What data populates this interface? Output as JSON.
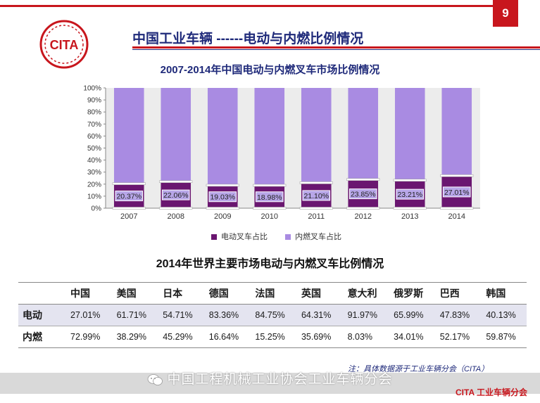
{
  "page_number": "9",
  "logo_text": "CITA",
  "slide_title": "中国工业车辆 ------电动与内燃比例情况",
  "chart_data": {
    "type": "bar",
    "stacked": true,
    "title": "2007-2014年中国电动与内燃叉车市场比例情况",
    "categories": [
      "2007",
      "2008",
      "2009",
      "2010",
      "2011",
      "2012",
      "2013",
      "2014"
    ],
    "series": [
      {
        "name": "电动叉车占比",
        "values": [
          20.37,
          22.06,
          19.03,
          18.98,
          21.1,
          23.85,
          23.21,
          27.01
        ],
        "color": "#6a1670"
      },
      {
        "name": "内燃叉车占比",
        "values": [
          79.63,
          77.94,
          80.97,
          81.02,
          78.9,
          76.15,
          76.79,
          72.99
        ],
        "color": "#a98be2"
      }
    ],
    "data_labels": [
      "20.37%",
      "22.06%",
      "19.03%",
      "18.98%",
      "21.10%",
      "23.85%",
      "23.21%",
      "27.01%"
    ],
    "y_ticks": [
      "0%",
      "10%",
      "20%",
      "30%",
      "40%",
      "50%",
      "60%",
      "70%",
      "80%",
      "90%",
      "100%"
    ],
    "ylim": [
      0,
      100
    ],
    "legend_position": "bottom"
  },
  "table": {
    "title": "2014年世界主要市场电动与内燃叉车比例情况",
    "columns": [
      "中国",
      "美国",
      "日本",
      "德国",
      "法国",
      "英国",
      "意大利",
      "俄罗斯",
      "巴西",
      "韩国"
    ],
    "rows": [
      {
        "label": "电动",
        "values": [
          "27.01%",
          "61.71%",
          "54.71%",
          "83.36%",
          "84.75%",
          "64.31%",
          "91.97%",
          "65.99%",
          "47.83%",
          "40.13%"
        ]
      },
      {
        "label": "内燃",
        "values": [
          "72.99%",
          "38.29%",
          "45.29%",
          "16.64%",
          "15.25%",
          "35.69%",
          "8.03%",
          "34.01%",
          "52.17%",
          "59.87%"
        ]
      }
    ]
  },
  "note": "注：具体数据源于工业车辆分会（CITA）",
  "wechat_watermark": "中国工程机械工业协会工业车辆分会",
  "footer_tag": "CITA 工业车辆分会"
}
